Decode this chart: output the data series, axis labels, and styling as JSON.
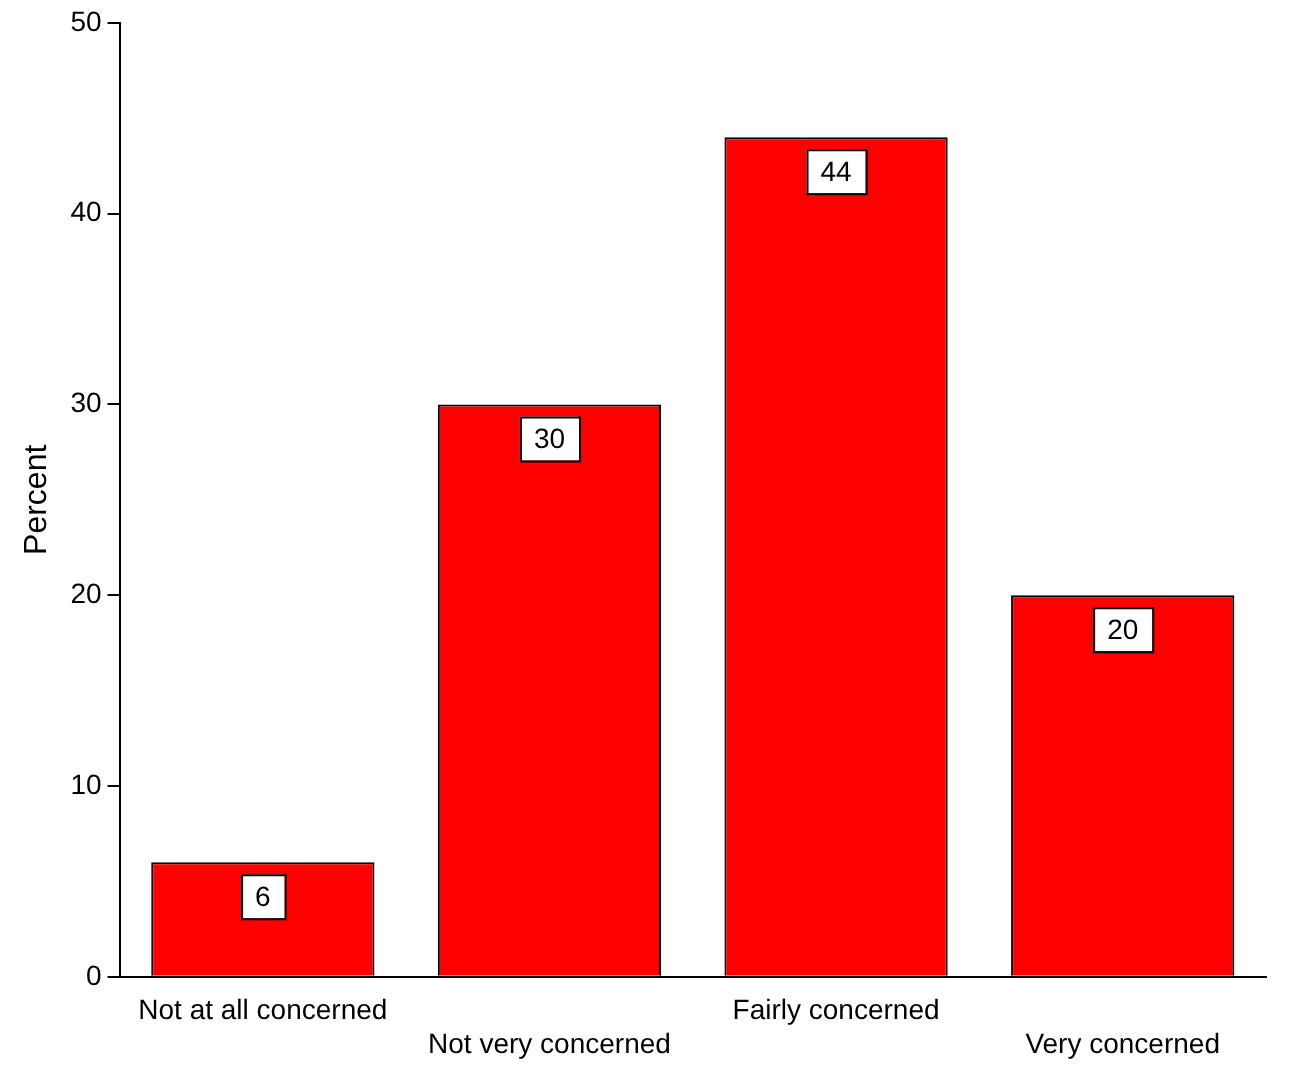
{
  "chart_data": {
    "type": "bar",
    "ylabel": "Percent",
    "categories": [
      "Not at all concerned",
      "Not very concerned",
      "Fairly concerned",
      "Very concerned"
    ],
    "values": [
      6,
      30,
      44,
      20
    ],
    "color": "#ff0000",
    "ylim": [
      0,
      50
    ],
    "yticks": [
      0,
      10,
      20,
      30,
      40,
      50
    ],
    "grid": false,
    "legend": false,
    "data_labels": true
  }
}
